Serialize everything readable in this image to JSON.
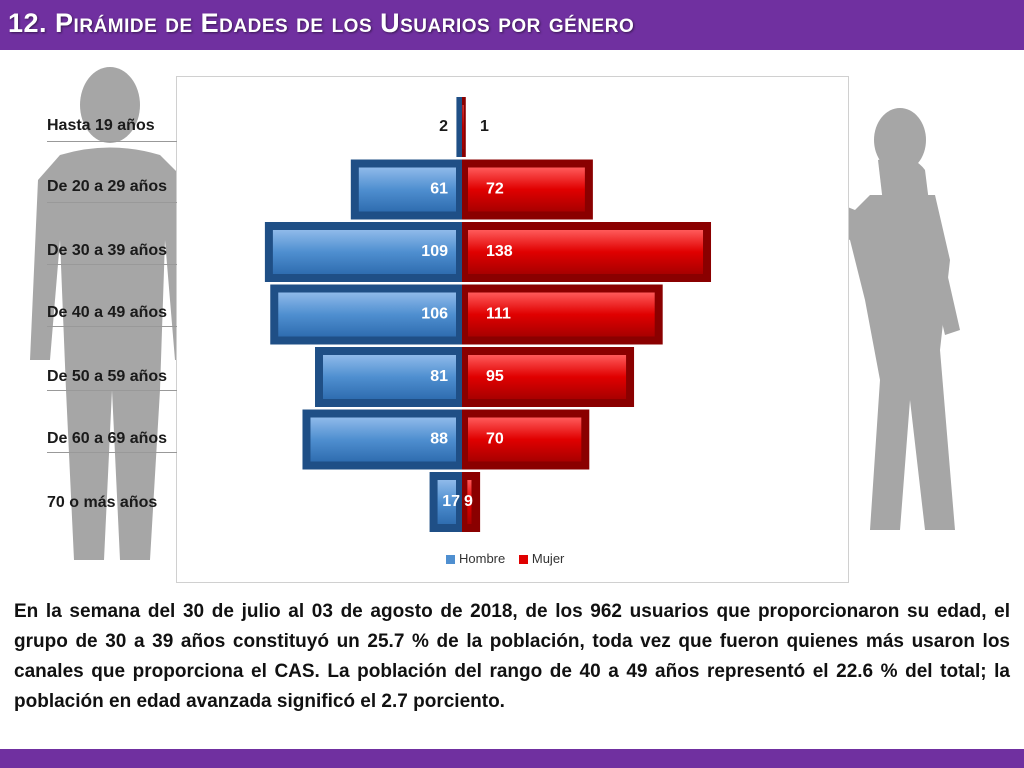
{
  "title": "12. Pirámide de Edades de los Usuarios por género",
  "colors": {
    "header": "#7030a0",
    "hombre": "#4f8fd0",
    "mujer": "#e00000",
    "silhouette": "#a6a6a6"
  },
  "chart_data": {
    "type": "bar",
    "orientation": "horizontal-pyramid",
    "categories": [
      "Hasta 19 años",
      "De 20 a 29 años",
      "De 30 a 39 años",
      "De 40 a 49 años",
      "De 50 a 59 años",
      "De 60 a 69 años",
      "70 o más años"
    ],
    "series": [
      {
        "name": "Hombre",
        "values": [
          2,
          61,
          109,
          106,
          81,
          88,
          17
        ]
      },
      {
        "name": "Mujer",
        "values": [
          1,
          72,
          138,
          111,
          95,
          70,
          9
        ]
      }
    ],
    "legend": [
      "Hombre",
      "Mujer"
    ],
    "legend_position": "bottom"
  },
  "paragraph": "En la semana del 30 de julio al 03 de agosto de 2018, de los 962 usuarios que proporcionaron su edad, el grupo de 30 a 39 años constituyó un 25.7 % de la población, toda vez que fueron quienes más usaron los canales que proporciona el CAS. La población del rango de 40 a 49 años representó el 22.6 % del total; la población en edad avanzada significó el 2.7 porciento."
}
